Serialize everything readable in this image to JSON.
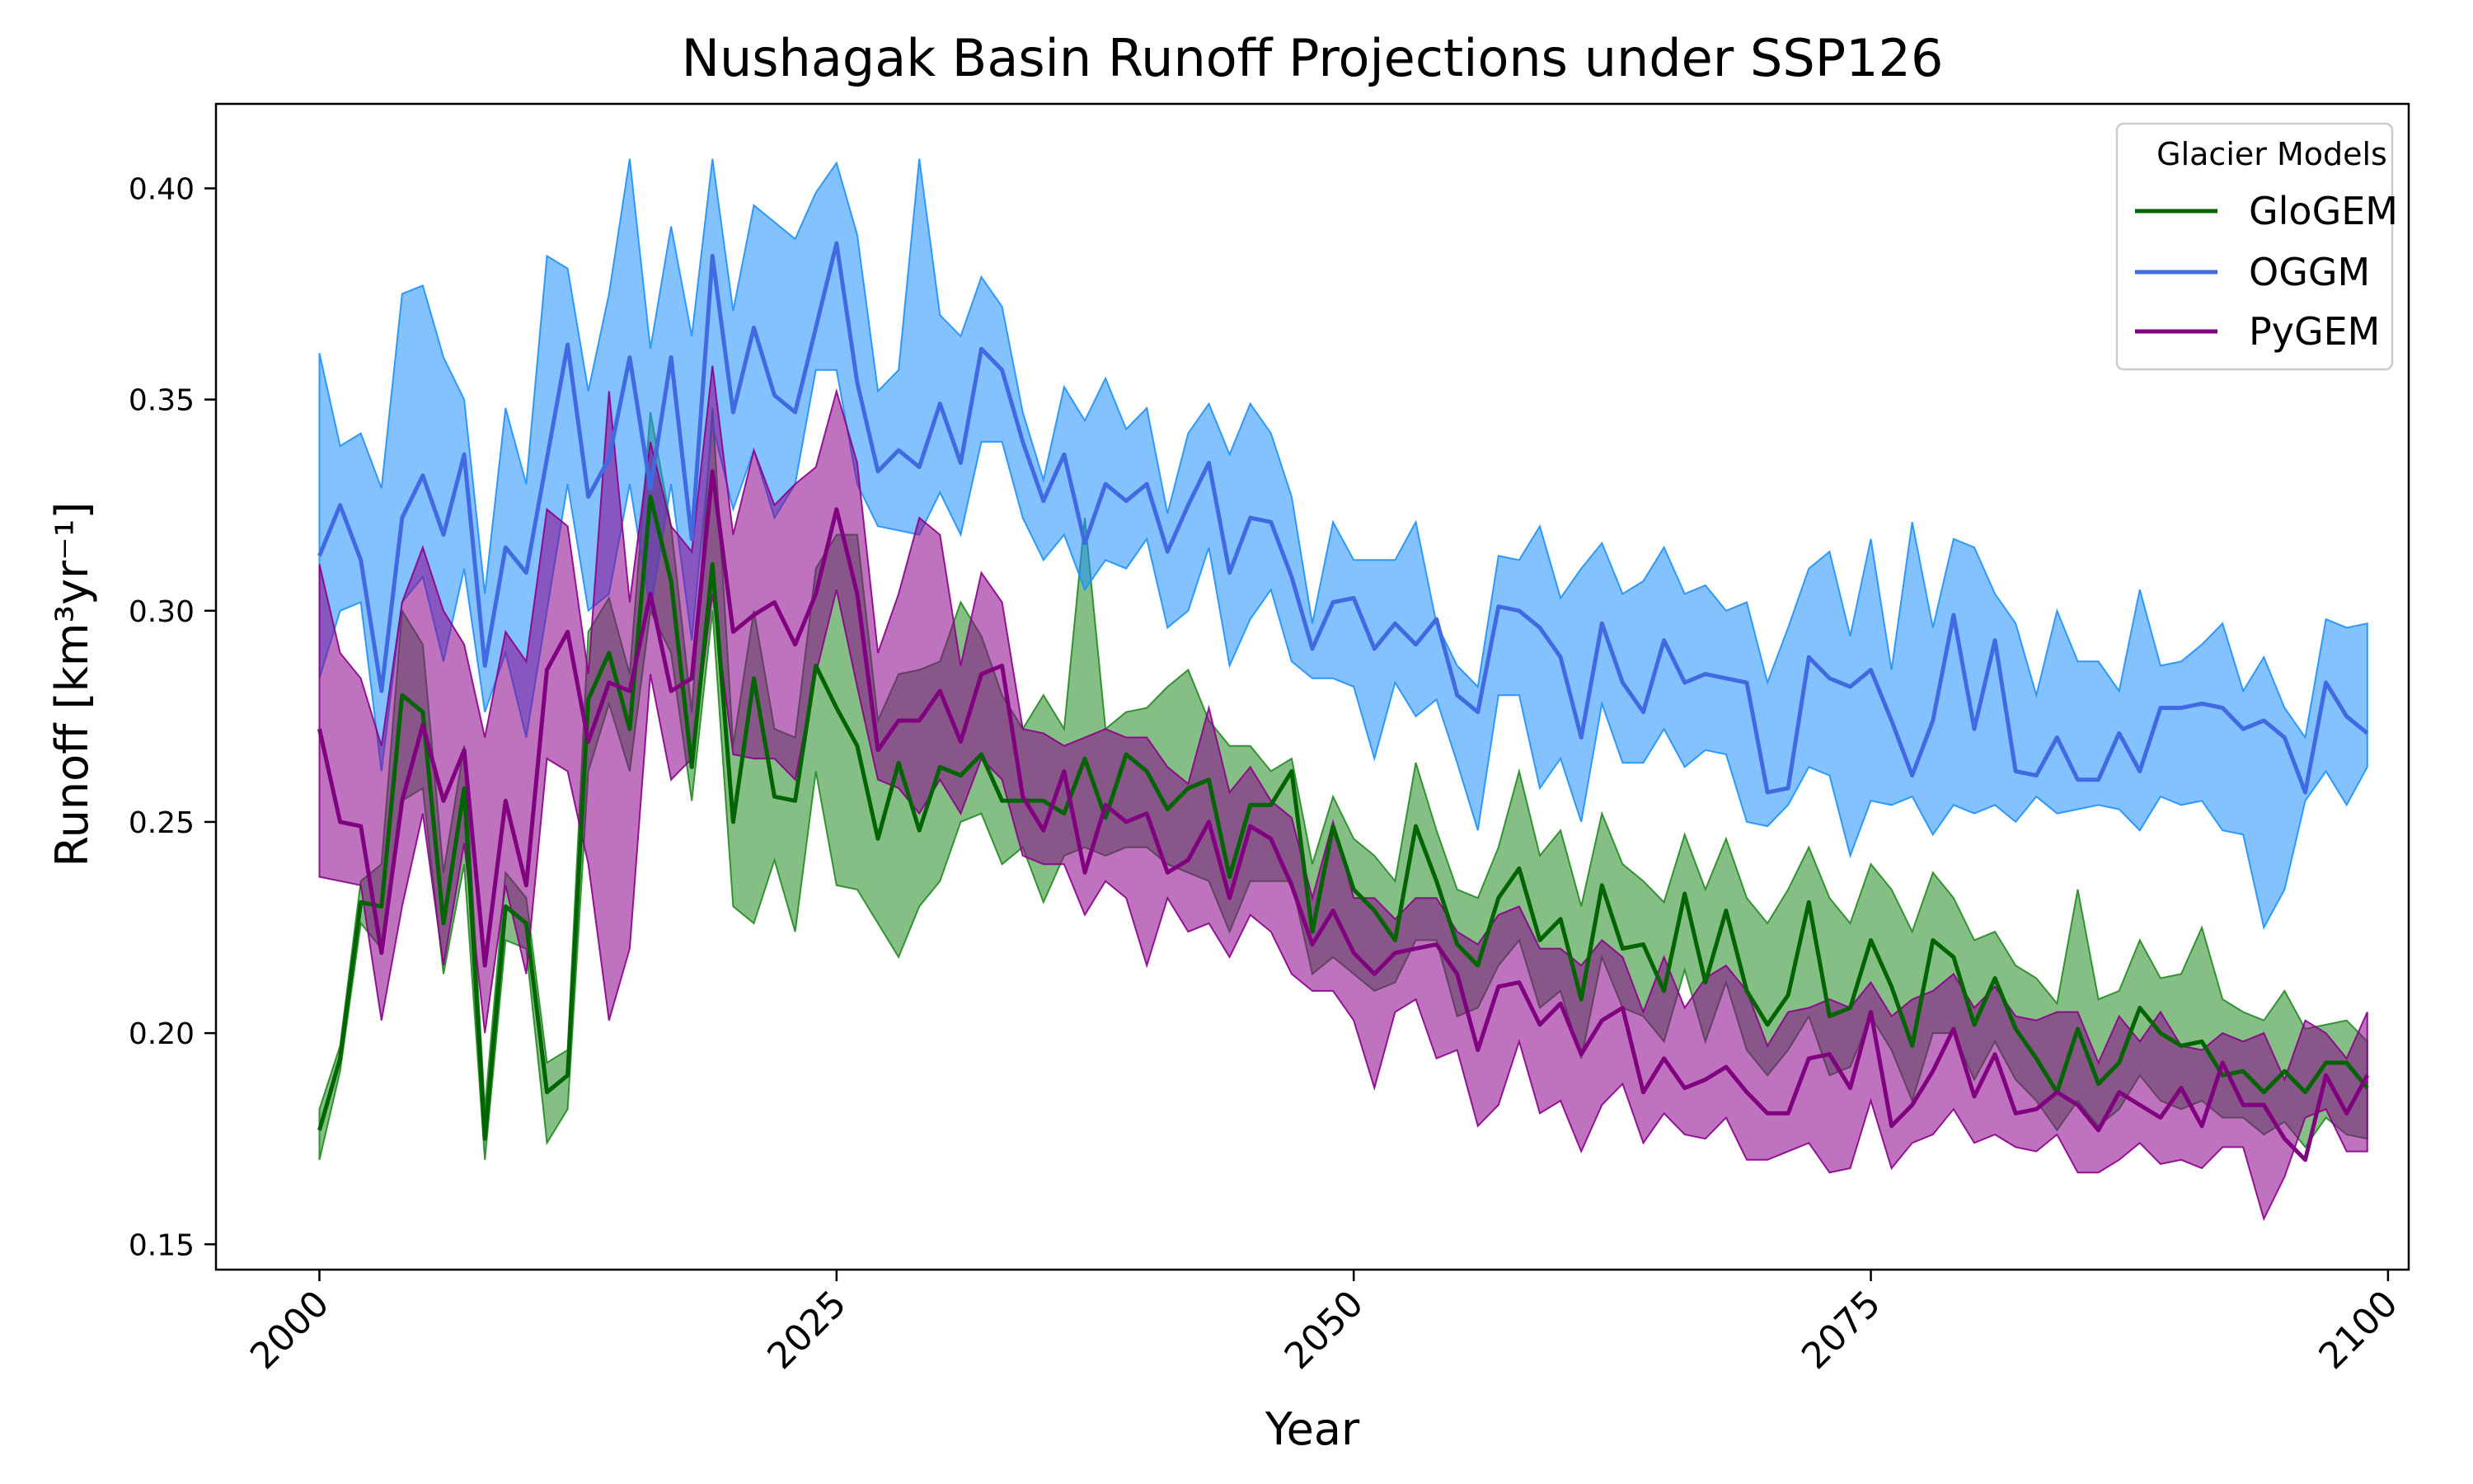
{
  "chart_data": {
    "type": "line",
    "title": "Nushagak Basin Runoff Projections under SSP126",
    "xlabel": "Year",
    "ylabel": "Runoff [km³yr⁻¹]",
    "xlim": [
      1995,
      2101
    ],
    "ylim": [
      0.144,
      0.42
    ],
    "xticks": [
      2000,
      2025,
      2050,
      2075,
      2100
    ],
    "yticks": [
      0.15,
      0.2,
      0.25,
      0.3,
      0.35,
      0.4
    ],
    "xtick_labels": [
      "2000",
      "2025",
      "2050",
      "2075",
      "2100"
    ],
    "ytick_labels": [
      "0.15",
      "0.20",
      "0.25",
      "0.30",
      "0.35",
      "0.40"
    ],
    "grid": false,
    "legend": {
      "title": "Glacier Models",
      "placement": "top-right"
    },
    "x": [
      2000,
      2001,
      2002,
      2003,
      2004,
      2005,
      2006,
      2007,
      2008,
      2009,
      2010,
      2011,
      2012,
      2013,
      2014,
      2015,
      2016,
      2017,
      2018,
      2019,
      2020,
      2021,
      2022,
      2023,
      2024,
      2025,
      2026,
      2027,
      2028,
      2029,
      2030,
      2031,
      2032,
      2033,
      2034,
      2035,
      2036,
      2037,
      2038,
      2039,
      2040,
      2041,
      2042,
      2043,
      2044,
      2045,
      2046,
      2047,
      2048,
      2049,
      2050,
      2051,
      2052,
      2053,
      2054,
      2055,
      2056,
      2057,
      2058,
      2059,
      2060,
      2061,
      2062,
      2063,
      2064,
      2065,
      2066,
      2067,
      2068,
      2069,
      2070,
      2071,
      2072,
      2073,
      2074,
      2075,
      2076,
      2077,
      2078,
      2079,
      2080,
      2081,
      2082,
      2083,
      2084,
      2085,
      2086,
      2087,
      2088,
      2089,
      2090,
      2091,
      2092,
      2093,
      2094,
      2095,
      2096,
      2097,
      2098,
      2099
    ],
    "series": [
      {
        "name": "GloGEM",
        "color": "#006400",
        "fill_color": "#228B22",
        "values": [
          0.177,
          0.194,
          0.231,
          0.23,
          0.28,
          0.276,
          0.226,
          0.258,
          0.175,
          0.23,
          0.226,
          0.186,
          0.19,
          0.279,
          0.29,
          0.272,
          0.327,
          0.307,
          0.263,
          0.311,
          0.25,
          0.284,
          0.256,
          0.255,
          0.287,
          0.277,
          0.268,
          0.246,
          0.264,
          0.248,
          0.263,
          0.261,
          0.266,
          0.255,
          0.255,
          0.255,
          0.252,
          0.265,
          0.251,
          0.266,
          0.262,
          0.253,
          0.258,
          0.26,
          0.237,
          0.254,
          0.254,
          0.262,
          0.224,
          0.249,
          0.234,
          0.229,
          0.222,
          0.249,
          0.236,
          0.221,
          0.216,
          0.232,
          0.239,
          0.222,
          0.227,
          0.208,
          0.235,
          0.22,
          0.221,
          0.21,
          0.233,
          0.212,
          0.229,
          0.21,
          0.202,
          0.209,
          0.231,
          0.204,
          0.206,
          0.222,
          0.211,
          0.197,
          0.222,
          0.218,
          0.202,
          0.213,
          0.201,
          0.194,
          0.186,
          0.201,
          0.188,
          0.193,
          0.206,
          0.2,
          0.197,
          0.198,
          0.19,
          0.191,
          0.186,
          0.191,
          0.186,
          0.193,
          0.193,
          0.187
        ],
        "upper": [
          0.182,
          0.197,
          0.236,
          0.24,
          0.3,
          0.292,
          0.238,
          0.268,
          0.182,
          0.238,
          0.232,
          0.193,
          0.196,
          0.295,
          0.303,
          0.285,
          0.347,
          0.32,
          0.276,
          0.348,
          0.268,
          0.3,
          0.272,
          0.27,
          0.31,
          0.318,
          0.318,
          0.274,
          0.285,
          0.286,
          0.288,
          0.302,
          0.294,
          0.28,
          0.272,
          0.28,
          0.272,
          0.322,
          0.272,
          0.276,
          0.277,
          0.282,
          0.286,
          0.274,
          0.268,
          0.268,
          0.262,
          0.265,
          0.24,
          0.256,
          0.246,
          0.242,
          0.236,
          0.264,
          0.248,
          0.234,
          0.232,
          0.244,
          0.262,
          0.242,
          0.248,
          0.23,
          0.252,
          0.24,
          0.236,
          0.231,
          0.247,
          0.234,
          0.246,
          0.232,
          0.226,
          0.234,
          0.244,
          0.232,
          0.226,
          0.24,
          0.234,
          0.224,
          0.238,
          0.232,
          0.222,
          0.224,
          0.216,
          0.213,
          0.207,
          0.234,
          0.208,
          0.21,
          0.222,
          0.213,
          0.214,
          0.225,
          0.208,
          0.205,
          0.203,
          0.21,
          0.201,
          0.202,
          0.203,
          0.198
        ],
        "lower": [
          0.17,
          0.191,
          0.226,
          0.22,
          0.255,
          0.258,
          0.214,
          0.24,
          0.17,
          0.222,
          0.22,
          0.174,
          0.182,
          0.262,
          0.278,
          0.262,
          0.3,
          0.29,
          0.255,
          0.3,
          0.23,
          0.226,
          0.241,
          0.224,
          0.262,
          0.235,
          0.234,
          0.226,
          0.218,
          0.23,
          0.236,
          0.25,
          0.252,
          0.24,
          0.244,
          0.231,
          0.242,
          0.244,
          0.242,
          0.244,
          0.244,
          0.24,
          0.238,
          0.236,
          0.224,
          0.236,
          0.236,
          0.236,
          0.214,
          0.218,
          0.214,
          0.21,
          0.212,
          0.222,
          0.222,
          0.204,
          0.206,
          0.216,
          0.222,
          0.206,
          0.21,
          0.194,
          0.218,
          0.206,
          0.204,
          0.198,
          0.215,
          0.198,
          0.212,
          0.196,
          0.19,
          0.196,
          0.204,
          0.19,
          0.192,
          0.204,
          0.196,
          0.184,
          0.2,
          0.2,
          0.189,
          0.198,
          0.189,
          0.184,
          0.177,
          0.184,
          0.178,
          0.182,
          0.19,
          0.184,
          0.182,
          0.184,
          0.18,
          0.18,
          0.176,
          0.179,
          0.173,
          0.18,
          0.176,
          0.175
        ]
      },
      {
        "name": "OGGM",
        "color": "#4169E1",
        "fill_color": "#1E90FF",
        "values": [
          0.313,
          0.325,
          0.312,
          0.281,
          0.322,
          0.332,
          0.318,
          0.337,
          0.287,
          0.315,
          0.309,
          0.336,
          0.363,
          0.327,
          0.336,
          0.36,
          0.329,
          0.36,
          0.317,
          0.384,
          0.347,
          0.367,
          0.351,
          0.347,
          0.367,
          0.387,
          0.354,
          0.333,
          0.338,
          0.334,
          0.349,
          0.335,
          0.362,
          0.357,
          0.34,
          0.326,
          0.337,
          0.316,
          0.33,
          0.326,
          0.33,
          0.314,
          0.325,
          0.335,
          0.309,
          0.322,
          0.321,
          0.308,
          0.291,
          0.302,
          0.303,
          0.291,
          0.297,
          0.292,
          0.298,
          0.28,
          0.276,
          0.301,
          0.3,
          0.296,
          0.289,
          0.27,
          0.297,
          0.283,
          0.276,
          0.293,
          0.283,
          0.285,
          0.284,
          0.283,
          0.257,
          0.258,
          0.289,
          0.284,
          0.282,
          0.286,
          0.274,
          0.261,
          0.274,
          0.299,
          0.272,
          0.293,
          0.262,
          0.261,
          0.27,
          0.26,
          0.26,
          0.271,
          0.262,
          0.277,
          0.277,
          0.278,
          0.277,
          0.272,
          0.274,
          0.27,
          0.257,
          0.283,
          0.275,
          0.271
        ],
        "upper": [
          0.361,
          0.339,
          0.342,
          0.329,
          0.375,
          0.377,
          0.36,
          0.35,
          0.304,
          0.348,
          0.33,
          0.384,
          0.381,
          0.352,
          0.375,
          0.407,
          0.362,
          0.391,
          0.365,
          0.407,
          0.371,
          0.396,
          0.392,
          0.388,
          0.399,
          0.406,
          0.389,
          0.352,
          0.357,
          0.407,
          0.37,
          0.365,
          0.379,
          0.372,
          0.347,
          0.331,
          0.353,
          0.345,
          0.355,
          0.343,
          0.348,
          0.323,
          0.342,
          0.349,
          0.337,
          0.349,
          0.342,
          0.327,
          0.297,
          0.321,
          0.312,
          0.312,
          0.312,
          0.321,
          0.297,
          0.287,
          0.282,
          0.313,
          0.312,
          0.32,
          0.303,
          0.31,
          0.316,
          0.304,
          0.307,
          0.315,
          0.304,
          0.306,
          0.3,
          0.302,
          0.283,
          0.296,
          0.31,
          0.314,
          0.294,
          0.317,
          0.286,
          0.321,
          0.296,
          0.317,
          0.315,
          0.304,
          0.297,
          0.28,
          0.3,
          0.288,
          0.288,
          0.281,
          0.305,
          0.287,
          0.288,
          0.292,
          0.297,
          0.281,
          0.289,
          0.277,
          0.27,
          0.298,
          0.296,
          0.297
        ],
        "lower": [
          0.284,
          0.3,
          0.302,
          0.262,
          0.302,
          0.308,
          0.288,
          0.31,
          0.276,
          0.29,
          0.27,
          0.3,
          0.33,
          0.3,
          0.304,
          0.33,
          0.3,
          0.33,
          0.293,
          0.344,
          0.324,
          0.338,
          0.322,
          0.33,
          0.357,
          0.357,
          0.33,
          0.32,
          0.319,
          0.318,
          0.328,
          0.318,
          0.34,
          0.34,
          0.322,
          0.312,
          0.318,
          0.305,
          0.312,
          0.31,
          0.317,
          0.296,
          0.3,
          0.315,
          0.287,
          0.298,
          0.305,
          0.288,
          0.284,
          0.284,
          0.282,
          0.265,
          0.283,
          0.275,
          0.279,
          0.264,
          0.248,
          0.28,
          0.28,
          0.258,
          0.265,
          0.25,
          0.278,
          0.264,
          0.264,
          0.272,
          0.263,
          0.267,
          0.266,
          0.25,
          0.249,
          0.254,
          0.263,
          0.261,
          0.242,
          0.255,
          0.254,
          0.256,
          0.247,
          0.254,
          0.252,
          0.254,
          0.25,
          0.256,
          0.252,
          0.253,
          0.254,
          0.253,
          0.248,
          0.256,
          0.254,
          0.255,
          0.248,
          0.247,
          0.225,
          0.234,
          0.255,
          0.262,
          0.254,
          0.263
        ]
      },
      {
        "name": "PyGEM",
        "color": "#800080",
        "fill_color": "#8B008B",
        "values": [
          0.272,
          0.25,
          0.249,
          0.219,
          0.255,
          0.273,
          0.255,
          0.267,
          0.216,
          0.255,
          0.235,
          0.286,
          0.295,
          0.269,
          0.283,
          0.281,
          0.304,
          0.281,
          0.284,
          0.333,
          0.295,
          0.299,
          0.302,
          0.292,
          0.304,
          0.324,
          0.304,
          0.267,
          0.274,
          0.274,
          0.281,
          0.269,
          0.285,
          0.287,
          0.256,
          0.248,
          0.262,
          0.238,
          0.254,
          0.25,
          0.252,
          0.238,
          0.241,
          0.25,
          0.232,
          0.249,
          0.246,
          0.235,
          0.221,
          0.229,
          0.219,
          0.214,
          0.219,
          0.22,
          0.221,
          0.214,
          0.196,
          0.211,
          0.212,
          0.202,
          0.207,
          0.195,
          0.203,
          0.206,
          0.186,
          0.194,
          0.187,
          0.189,
          0.192,
          0.186,
          0.181,
          0.181,
          0.194,
          0.195,
          0.187,
          0.205,
          0.178,
          0.183,
          0.191,
          0.201,
          0.185,
          0.195,
          0.181,
          0.182,
          0.186,
          0.183,
          0.177,
          0.186,
          0.183,
          0.18,
          0.187,
          0.178,
          0.193,
          0.183,
          0.183,
          0.175,
          0.17,
          0.19,
          0.181,
          0.19
        ],
        "upper": [
          0.311,
          0.29,
          0.284,
          0.268,
          0.302,
          0.315,
          0.3,
          0.292,
          0.27,
          0.295,
          0.288,
          0.324,
          0.32,
          0.285,
          0.352,
          0.302,
          0.34,
          0.32,
          0.314,
          0.358,
          0.318,
          0.338,
          0.325,
          0.33,
          0.334,
          0.352,
          0.335,
          0.29,
          0.304,
          0.322,
          0.318,
          0.287,
          0.309,
          0.302,
          0.272,
          0.271,
          0.268,
          0.27,
          0.272,
          0.27,
          0.27,
          0.263,
          0.259,
          0.277,
          0.257,
          0.263,
          0.255,
          0.251,
          0.232,
          0.25,
          0.232,
          0.232,
          0.227,
          0.232,
          0.232,
          0.224,
          0.221,
          0.228,
          0.23,
          0.22,
          0.22,
          0.216,
          0.222,
          0.218,
          0.205,
          0.218,
          0.206,
          0.213,
          0.216,
          0.21,
          0.197,
          0.205,
          0.206,
          0.208,
          0.206,
          0.212,
          0.204,
          0.208,
          0.21,
          0.214,
          0.206,
          0.211,
          0.204,
          0.203,
          0.205,
          0.205,
          0.193,
          0.204,
          0.198,
          0.205,
          0.197,
          0.196,
          0.2,
          0.198,
          0.2,
          0.189,
          0.203,
          0.2,
          0.194,
          0.205
        ],
        "lower": [
          0.237,
          0.236,
          0.235,
          0.203,
          0.23,
          0.252,
          0.216,
          0.245,
          0.2,
          0.235,
          0.214,
          0.265,
          0.262,
          0.24,
          0.203,
          0.22,
          0.285,
          0.26,
          0.265,
          0.304,
          0.266,
          0.265,
          0.265,
          0.26,
          0.285,
          0.305,
          0.282,
          0.26,
          0.258,
          0.252,
          0.26,
          0.252,
          0.265,
          0.26,
          0.242,
          0.24,
          0.24,
          0.228,
          0.236,
          0.232,
          0.216,
          0.232,
          0.224,
          0.226,
          0.218,
          0.228,
          0.224,
          0.214,
          0.21,
          0.21,
          0.203,
          0.187,
          0.205,
          0.208,
          0.194,
          0.196,
          0.178,
          0.183,
          0.198,
          0.181,
          0.184,
          0.172,
          0.183,
          0.188,
          0.174,
          0.181,
          0.176,
          0.175,
          0.18,
          0.17,
          0.17,
          0.172,
          0.174,
          0.167,
          0.168,
          0.184,
          0.168,
          0.174,
          0.176,
          0.182,
          0.174,
          0.176,
          0.173,
          0.172,
          0.176,
          0.167,
          0.167,
          0.17,
          0.174,
          0.169,
          0.17,
          0.168,
          0.173,
          0.173,
          0.156,
          0.166,
          0.18,
          0.182,
          0.172,
          0.172
        ]
      }
    ]
  }
}
